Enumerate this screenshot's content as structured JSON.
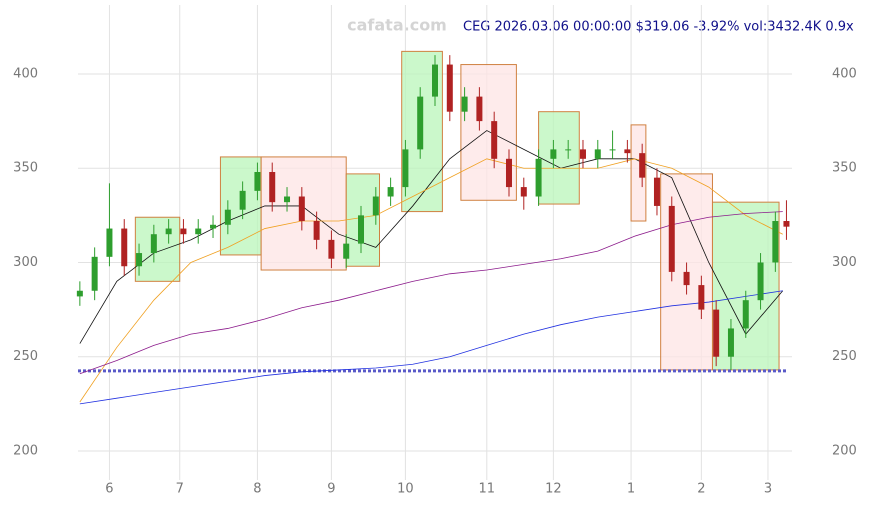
{
  "chart_data": {
    "type": "candlestick",
    "title": "CEG 2026.03.06 00:00:00 $319.06 -3.92% vol:3432.4K 0.9x",
    "watermark": "cafata.com",
    "xlim": [
      -0.5,
      192.5
    ],
    "ylim": [
      184.6,
      436.6
    ],
    "xticks": [
      {
        "value": 8,
        "label": "6"
      },
      {
        "value": 27,
        "label": "7"
      },
      {
        "value": 48,
        "label": "8"
      },
      {
        "value": 68,
        "label": "9"
      },
      {
        "value": 88,
        "label": "10"
      },
      {
        "value": 110,
        "label": "11"
      },
      {
        "value": 128,
        "label": "12"
      },
      {
        "value": 149,
        "label": "1"
      },
      {
        "value": 168,
        "label": "2"
      },
      {
        "value": 186,
        "label": "3"
      }
    ],
    "yticks": [
      200,
      250,
      300,
      350,
      400
    ],
    "grid": true,
    "up_color": "#2e9e2e",
    "down_color": "#b02222",
    "x": [
      0,
      4,
      8,
      12,
      16,
      20,
      24,
      28,
      32,
      36,
      40,
      44,
      48,
      52,
      56,
      60,
      64,
      68,
      72,
      76,
      80,
      84,
      88,
      92,
      96,
      100,
      104,
      108,
      112,
      116,
      120,
      124,
      128,
      132,
      136,
      140,
      144,
      148,
      152,
      156,
      160,
      164,
      168,
      172,
      176,
      180,
      184,
      188,
      191
    ],
    "open": [
      282,
      285,
      303,
      318,
      298,
      305,
      315,
      318,
      315,
      318,
      320,
      328,
      338,
      348,
      332,
      335,
      322,
      312,
      302,
      310,
      325,
      335,
      340,
      360,
      388,
      405,
      380,
      388,
      375,
      355,
      340,
      335,
      355,
      360,
      360,
      355,
      360,
      360,
      358,
      345,
      330,
      295,
      288,
      275,
      250,
      265,
      280,
      300,
      322
    ],
    "high": [
      290,
      308,
      342,
      323,
      310,
      320,
      323,
      323,
      323,
      325,
      333,
      343,
      353,
      353,
      340,
      340,
      327,
      317,
      315,
      330,
      340,
      345,
      365,
      393,
      410,
      410,
      393,
      393,
      380,
      360,
      345,
      360,
      365,
      365,
      365,
      365,
      370,
      365,
      363,
      350,
      335,
      300,
      293,
      280,
      270,
      285,
      305,
      327,
      333
    ],
    "low": [
      277,
      280,
      298,
      293,
      293,
      300,
      310,
      310,
      310,
      313,
      315,
      323,
      333,
      327,
      327,
      317,
      307,
      297,
      297,
      305,
      320,
      330,
      335,
      355,
      383,
      375,
      375,
      370,
      350,
      335,
      328,
      330,
      350,
      355,
      350,
      350,
      355,
      353,
      340,
      325,
      290,
      283,
      270,
      245,
      243,
      260,
      275,
      295,
      312
    ],
    "close": [
      285,
      303,
      318,
      298,
      305,
      315,
      318,
      315,
      318,
      320,
      328,
      338,
      348,
      332,
      335,
      322,
      312,
      302,
      310,
      325,
      335,
      340,
      360,
      388,
      405,
      380,
      388,
      375,
      355,
      340,
      335,
      355,
      360,
      360,
      355,
      360,
      360,
      358,
      345,
      330,
      295,
      288,
      275,
      250,
      265,
      280,
      300,
      322,
      319
    ],
    "line_x": [
      0,
      10,
      20,
      30,
      40,
      50,
      60,
      70,
      80,
      90,
      100,
      110,
      120,
      130,
      140,
      150,
      160,
      170,
      180,
      190
    ],
    "lines": [
      {
        "color": "#111111",
        "values": [
          257,
          290,
          305,
          312,
          322,
          330,
          330,
          315,
          308,
          330,
          355,
          370,
          360,
          350,
          355,
          355,
          345,
          300,
          262,
          285
        ]
      },
      {
        "color": "#f0a020",
        "values": [
          226,
          255,
          280,
          300,
          308,
          318,
          322,
          322,
          325,
          335,
          345,
          355,
          350,
          350,
          350,
          355,
          350,
          340,
          325,
          315
        ]
      },
      {
        "color": "#8b1a8b",
        "values": [
          241,
          248,
          256,
          262,
          265,
          270,
          276,
          280,
          285,
          290,
          294,
          296,
          299,
          302,
          306,
          314,
          320,
          324,
          326,
          327
        ]
      },
      {
        "color": "#2030e0",
        "values": [
          225,
          228,
          231,
          234,
          237,
          240,
          242,
          243,
          244,
          246,
          250,
          256,
          262,
          267,
          271,
          274,
          277,
          279,
          282,
          285
        ]
      }
    ],
    "boxes": [
      {
        "x": [
          15,
          27
        ],
        "range": [
          290,
          324
        ],
        "color": "#b9f5b9"
      },
      {
        "x": [
          38,
          49
        ],
        "range": [
          304,
          356
        ],
        "color": "#b9f5b9"
      },
      {
        "x": [
          49,
          72
        ],
        "range": [
          296,
          356
        ],
        "color": "#fde4e4"
      },
      {
        "x": [
          72,
          81
        ],
        "range": [
          298,
          347
        ],
        "color": "#b9f5b9"
      },
      {
        "x": [
          87,
          98
        ],
        "range": [
          327,
          412
        ],
        "color": "#b9f5b9"
      },
      {
        "x": [
          103,
          118
        ],
        "range": [
          333,
          405
        ],
        "color": "#fde4e4"
      },
      {
        "x": [
          124,
          135
        ],
        "range": [
          331,
          380
        ],
        "color": "#b9f5b9"
      },
      {
        "x": [
          149,
          153
        ],
        "range": [
          322,
          373
        ],
        "color": "#fde4e4"
      },
      {
        "x": [
          157,
          171
        ],
        "range": [
          243,
          347
        ],
        "color": "#fde4e4"
      },
      {
        "x": [
          171,
          189
        ],
        "range": [
          243,
          332
        ],
        "color": "#b9f5b9"
      }
    ],
    "hlines": [
      242.5
    ]
  }
}
